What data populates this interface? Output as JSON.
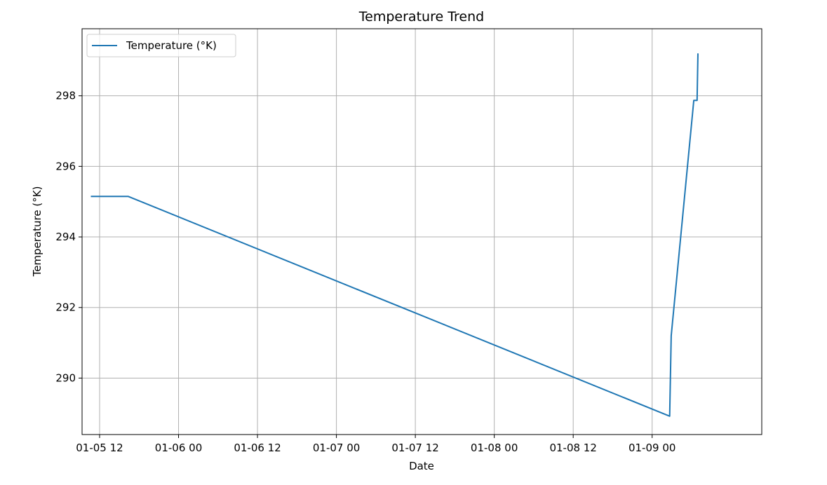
{
  "chart_data": {
    "type": "line",
    "title": "Temperature Trend",
    "xlabel": "Date",
    "ylabel": "Temperature (°K)",
    "grid": true,
    "legend_position": "upper-left",
    "x_ticks": [
      {
        "value": "01-05 12:00",
        "label": "01-05 12"
      },
      {
        "value": "01-06 00:00",
        "label": "01-06 00"
      },
      {
        "value": "01-06 12:00",
        "label": "01-06 12"
      },
      {
        "value": "01-07 00:00",
        "label": "01-07 00"
      },
      {
        "value": "01-07 12:00",
        "label": "01-07 12"
      },
      {
        "value": "01-08 00:00",
        "label": "01-08 00"
      },
      {
        "value": "01-08 12:00",
        "label": "01-08 12"
      },
      {
        "value": "01-09 00:00",
        "label": "01-09 00"
      }
    ],
    "y_ticks": [
      290,
      292,
      294,
      296,
      298
    ],
    "xlim": [
      "01-05 09:20",
      "01-09 16:40"
    ],
    "ylim": [
      288.4,
      299.9
    ],
    "series": [
      {
        "name": "Temperature (°K)",
        "color": "#1f77b4",
        "points": [
          {
            "x": "01-05 10:40",
            "y": 295.15
          },
          {
            "x": "01-05 16:20",
            "y": 295.15
          },
          {
            "x": "01-09 02:40",
            "y": 288.92
          },
          {
            "x": "01-09 02:54",
            "y": 291.2
          },
          {
            "x": "01-09 06:20",
            "y": 297.87
          },
          {
            "x": "01-09 06:50",
            "y": 297.87
          },
          {
            "x": "01-09 06:58",
            "y": 299.2
          }
        ]
      }
    ]
  }
}
